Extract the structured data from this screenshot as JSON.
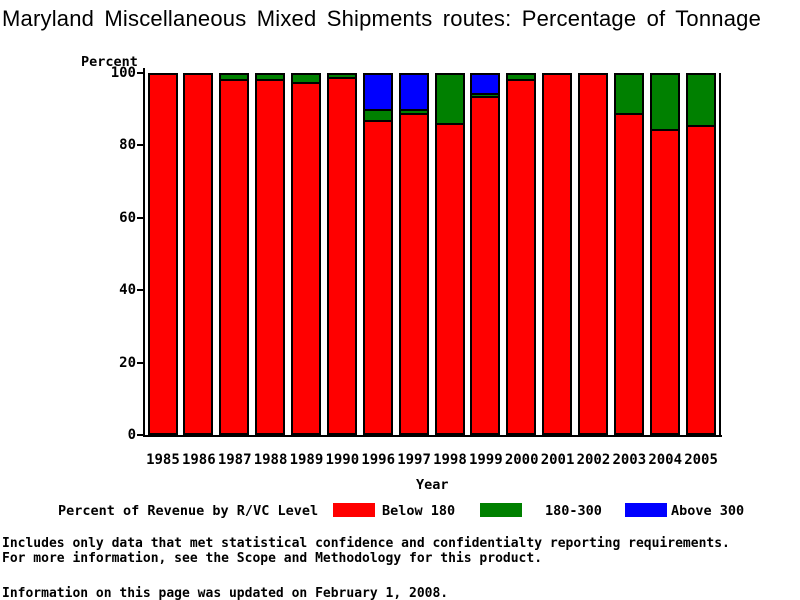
{
  "title": "Maryland Miscellaneous Mixed Shipments routes: Percentage of Tonnage",
  "chart_data": {
    "type": "bar",
    "stacked": true,
    "title": "Maryland Miscellaneous Mixed Shipments routes: Percentage of Tonnage",
    "xlabel": "Year",
    "ylabel": "Percent",
    "ylim": [
      0,
      100
    ],
    "yticks": [
      0,
      20,
      40,
      60,
      80,
      100
    ],
    "grid": false,
    "legend_position": "bottom",
    "categories": [
      "1985",
      "1986",
      "1987",
      "1988",
      "1989",
      "1990",
      "1996",
      "1997",
      "1998",
      "1999",
      "2000",
      "2001",
      "2002",
      "2003",
      "2004",
      "2005"
    ],
    "series": [
      {
        "name": "Below 180",
        "color": "#ff0000",
        "values": [
          100,
          100,
          99,
          99,
          98,
          99.5,
          87.5,
          89.5,
          86.5,
          94,
          99,
          100,
          100,
          89.5,
          85,
          86
        ]
      },
      {
        "name": "180-300",
        "color": "#008000",
        "values": [
          0,
          0,
          1,
          1,
          2,
          0.5,
          3,
          1,
          13.5,
          1,
          1,
          0,
          0,
          10.5,
          15,
          14
        ]
      },
      {
        "name": "Above 300",
        "color": "#0000ff",
        "values": [
          0,
          0,
          0,
          0,
          0,
          0,
          9.5,
          9.5,
          0,
          5,
          0,
          0,
          0,
          0,
          0,
          0
        ]
      }
    ]
  },
  "legend": {
    "title": "Percent of Revenue by R/VC Level",
    "items": [
      {
        "label": "Below 180",
        "color": "#ff0000"
      },
      {
        "label": "180-300",
        "color": "#008000"
      },
      {
        "label": "Above 300",
        "color": "#0000ff"
      }
    ]
  },
  "footer": {
    "line1": "Includes only data that met statistical confidence and confidentialty reporting requirements.",
    "line2": "For more information, see the Scope and Methodology for this product.",
    "updated": "Information on this page was updated on February 1, 2008."
  }
}
